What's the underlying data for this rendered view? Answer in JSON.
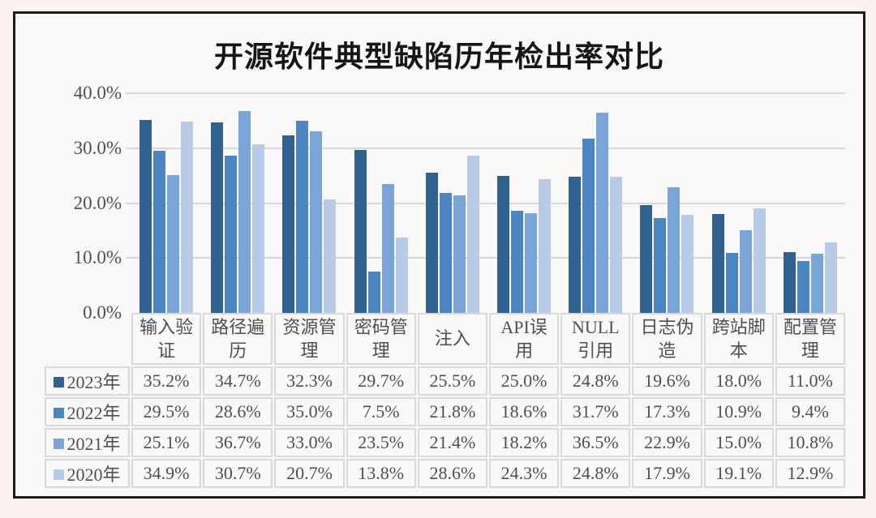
{
  "page": {
    "background_color": "#fcf2f2",
    "frame_border_color": "#1b1b1b",
    "frame_background": "#fbf9f8"
  },
  "colors": {
    "gridline": "#d9d9d9",
    "table_border": "#d9d9d9",
    "text": "#4f4f4f",
    "title_text": "#161616"
  },
  "chart_data": {
    "type": "bar",
    "title": "开源软件典型缺陷历年检出率对比",
    "categories": [
      "输入验证",
      "路径遍历",
      "资源管理",
      "密码管理",
      "注入",
      "API误用",
      "NULL引用",
      "日志伪造",
      "跨站脚本",
      "配置管理"
    ],
    "series": [
      {
        "name": "2023年",
        "color": "#31618F",
        "values": [
          35.2,
          34.7,
          32.3,
          29.7,
          25.5,
          25.0,
          24.8,
          19.6,
          18.0,
          11.0
        ]
      },
      {
        "name": "2022年",
        "color": "#4C86C0",
        "values": [
          29.5,
          28.6,
          35.0,
          7.5,
          21.8,
          18.6,
          31.7,
          17.3,
          10.9,
          9.4
        ]
      },
      {
        "name": "2021年",
        "color": "#7AA5D8",
        "values": [
          25.1,
          36.7,
          33.0,
          23.5,
          21.4,
          18.2,
          36.5,
          22.9,
          15.0,
          10.8
        ]
      },
      {
        "name": "2020年",
        "color": "#B7CBE7",
        "values": [
          34.9,
          30.7,
          20.7,
          13.8,
          28.6,
          24.3,
          24.8,
          17.9,
          19.1,
          12.9
        ]
      }
    ],
    "y_ticks": [
      {
        "label": "40.0%",
        "value": 40
      },
      {
        "label": "30.0%",
        "value": 30
      },
      {
        "label": "20.0%",
        "value": 20
      },
      {
        "label": "10.0%",
        "value": 10
      },
      {
        "label": "0.0%",
        "value": 0
      }
    ],
    "ylim": [
      0,
      40
    ],
    "grid": true,
    "legend_position": "table-left-column",
    "value_format": "one_decimal_percent"
  }
}
